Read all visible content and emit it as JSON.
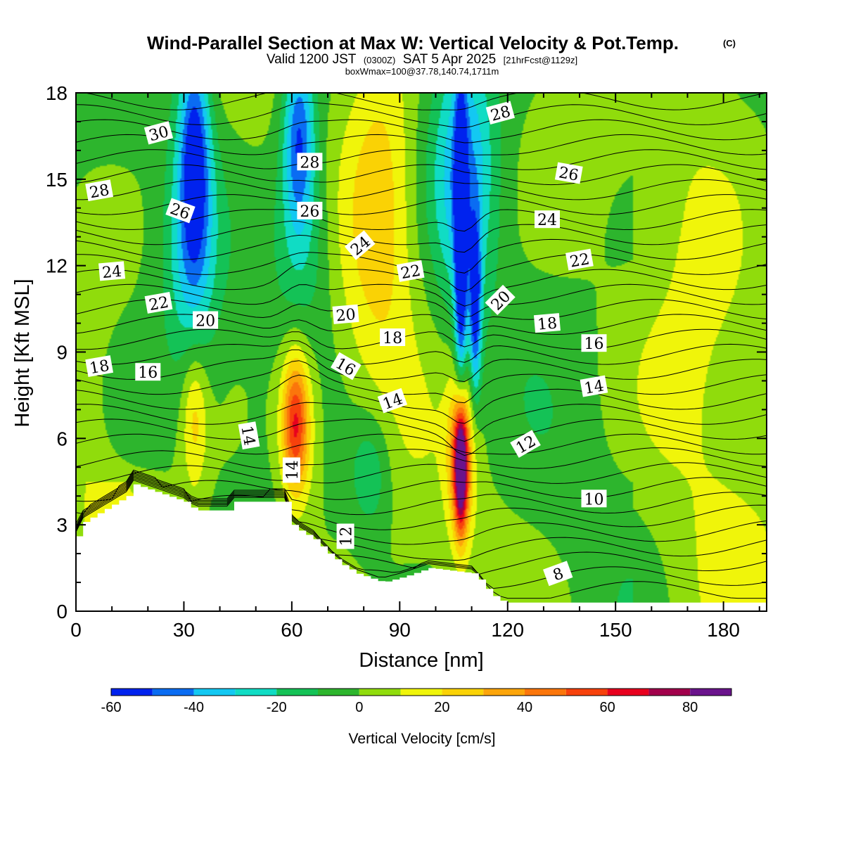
{
  "header": {
    "title": "Wind-Parallel Section at Max W: Vertical Velocity & Pot.Temp.",
    "copyright": "(C)",
    "valid_prefix": "Valid 1200 JST",
    "valid_utc": "(0300Z)",
    "valid_date": "SAT 5 Apr 2025",
    "forecast": "[21hrFcst@1129z]",
    "box_info": "boxWmax=100@37.78,140.74,1711m"
  },
  "colors": {
    "plot_background": "#2db52d",
    "terrain": "#ffffff",
    "contour": "#000000"
  },
  "chart_data": {
    "type": "heatmap",
    "xlabel": "Distance [nm]",
    "ylabel": "Height [Kft MSL]",
    "xlim": [
      0,
      192
    ],
    "ylim": [
      0,
      18
    ],
    "x_ticks": [
      0,
      30,
      60,
      90,
      120,
      150,
      180
    ],
    "y_ticks": [
      0,
      3,
      6,
      9,
      12,
      15,
      18
    ],
    "colorbar": {
      "title": "Vertical Velocity [cm/s]",
      "tick_labels": [
        -60,
        -40,
        -20,
        0,
        20,
        40,
        60,
        80
      ],
      "levels": [
        -60,
        -50,
        -40,
        -30,
        -20,
        -10,
        0,
        10,
        20,
        30,
        40,
        50,
        60,
        70,
        80,
        90
      ],
      "colors": [
        "#0022ee",
        "#0a6cf2",
        "#13c8f2",
        "#10dcc4",
        "#14c256",
        "#2db52d",
        "#90dc0c",
        "#f0f50a",
        "#fad205",
        "#fca50a",
        "#fb760b",
        "#f7410c",
        "#e8001e",
        "#a2004b",
        "#6a138c"
      ]
    },
    "terrain_kft": [
      [
        0,
        2.6
      ],
      [
        2,
        3.1
      ],
      [
        6,
        3.4
      ],
      [
        10,
        3.7
      ],
      [
        14,
        4.0
      ],
      [
        16,
        4.4
      ],
      [
        30,
        3.8
      ],
      [
        33,
        3.5
      ],
      [
        42,
        3.5
      ],
      [
        43,
        3.8
      ],
      [
        58,
        3.8
      ],
      [
        59,
        3.1
      ],
      [
        62,
        2.8
      ],
      [
        66,
        2.5
      ],
      [
        70,
        2.0
      ],
      [
        74,
        1.6
      ],
      [
        78,
        1.3
      ],
      [
        85,
        1.0
      ],
      [
        91,
        1.2
      ],
      [
        98,
        1.5
      ],
      [
        111,
        1.3
      ],
      [
        113,
        0.9
      ],
      [
        117,
        0.4
      ],
      [
        120,
        0.3
      ],
      [
        192,
        0.3
      ]
    ],
    "vertical_velocity_features": [
      {
        "x": 33,
        "y": 16.0,
        "sx": 3,
        "sy": 2.8,
        "value": -50
      },
      {
        "x": 32,
        "y": 12.5,
        "sx": 5,
        "sy": 3.0,
        "value": -25
      },
      {
        "x": 62,
        "y": 16.5,
        "sx": 3,
        "sy": 2.2,
        "value": -45
      },
      {
        "x": 63,
        "y": 13.0,
        "sx": 6,
        "sy": 3.0,
        "value": -25
      },
      {
        "x": 85,
        "y": 14.5,
        "sx": 7,
        "sy": 4.5,
        "value": 25
      },
      {
        "x": 108,
        "y": 15.5,
        "sx": 6,
        "sy": 3.5,
        "value": -35
      },
      {
        "x": 107,
        "y": 12.5,
        "sx": 1.2,
        "sy": 4.0,
        "value": -60
      },
      {
        "x": 111,
        "y": 10.5,
        "sx": 1.2,
        "sy": 2.2,
        "value": -50
      },
      {
        "x": 61,
        "y": 6.5,
        "sx": 2.5,
        "sy": 1.6,
        "value": 50
      },
      {
        "x": 62,
        "y": 6.5,
        "sx": 4.5,
        "sy": 2.5,
        "value": 20
      },
      {
        "x": 33,
        "y": 6.8,
        "sx": 2.5,
        "sy": 1.8,
        "value": 25
      },
      {
        "x": 107,
        "y": 5.0,
        "sx": 1.2,
        "sy": 1.5,
        "value": 80
      },
      {
        "x": 107,
        "y": 5.3,
        "sx": 2.5,
        "sy": 2.0,
        "value": 45
      },
      {
        "x": 82,
        "y": 4.8,
        "sx": 4,
        "sy": 1.5,
        "value": -20
      }
    ]
  },
  "contour_labels": [
    {
      "text": "30",
      "x": 23,
      "y": 16.6,
      "angle": -15
    },
    {
      "text": "28",
      "x": 6.5,
      "y": 14.6,
      "angle": -10
    },
    {
      "text": "28",
      "x": 65,
      "y": 15.6,
      "angle": 0
    },
    {
      "text": "28",
      "x": 118,
      "y": 17.3,
      "angle": -15
    },
    {
      "text": "26",
      "x": 29,
      "y": 13.9,
      "angle": 20
    },
    {
      "text": "26",
      "x": 65,
      "y": 13.9,
      "angle": 0
    },
    {
      "text": "26",
      "x": 137,
      "y": 15.2,
      "angle": 10
    },
    {
      "text": "24",
      "x": 10,
      "y": 11.8,
      "angle": -5
    },
    {
      "text": "24",
      "x": 79,
      "y": 12.7,
      "angle": -40
    },
    {
      "text": "24",
      "x": 131,
      "y": 13.6,
      "angle": 0
    },
    {
      "text": "22",
      "x": 23,
      "y": 10.7,
      "angle": -10
    },
    {
      "text": "22",
      "x": 93,
      "y": 11.8,
      "angle": -10
    },
    {
      "text": "22",
      "x": 140,
      "y": 12.2,
      "angle": -10
    },
    {
      "text": "20",
      "x": 36,
      "y": 10.1,
      "angle": 0
    },
    {
      "text": "20",
      "x": 75,
      "y": 10.3,
      "angle": -5
    },
    {
      "text": "20",
      "x": 118,
      "y": 10.8,
      "angle": -45
    },
    {
      "text": "18",
      "x": 6.5,
      "y": 8.5,
      "angle": -10
    },
    {
      "text": "18",
      "x": 88,
      "y": 9.5,
      "angle": 0
    },
    {
      "text": "18",
      "x": 131,
      "y": 10.0,
      "angle": -5
    },
    {
      "text": "16",
      "x": 20,
      "y": 8.3,
      "angle": 0
    },
    {
      "text": "16",
      "x": 75,
      "y": 8.5,
      "angle": 30
    },
    {
      "text": "16",
      "x": 144,
      "y": 9.3,
      "angle": 0
    },
    {
      "text": "14",
      "x": 88,
      "y": 7.3,
      "angle": -20
    },
    {
      "text": "14",
      "x": 144,
      "y": 7.8,
      "angle": -10
    },
    {
      "text": "14",
      "x": 48,
      "y": 6.1,
      "angle": 80
    },
    {
      "text": "14",
      "x": 60,
      "y": 4.9,
      "angle": -90
    },
    {
      "text": "12",
      "x": 125,
      "y": 5.8,
      "angle": -30
    },
    {
      "text": "12",
      "x": 75,
      "y": 2.6,
      "angle": -90
    },
    {
      "text": "10",
      "x": 144,
      "y": 3.9,
      "angle": 0
    },
    {
      "text": "8",
      "x": 134,
      "y": 1.3,
      "angle": -20
    }
  ]
}
